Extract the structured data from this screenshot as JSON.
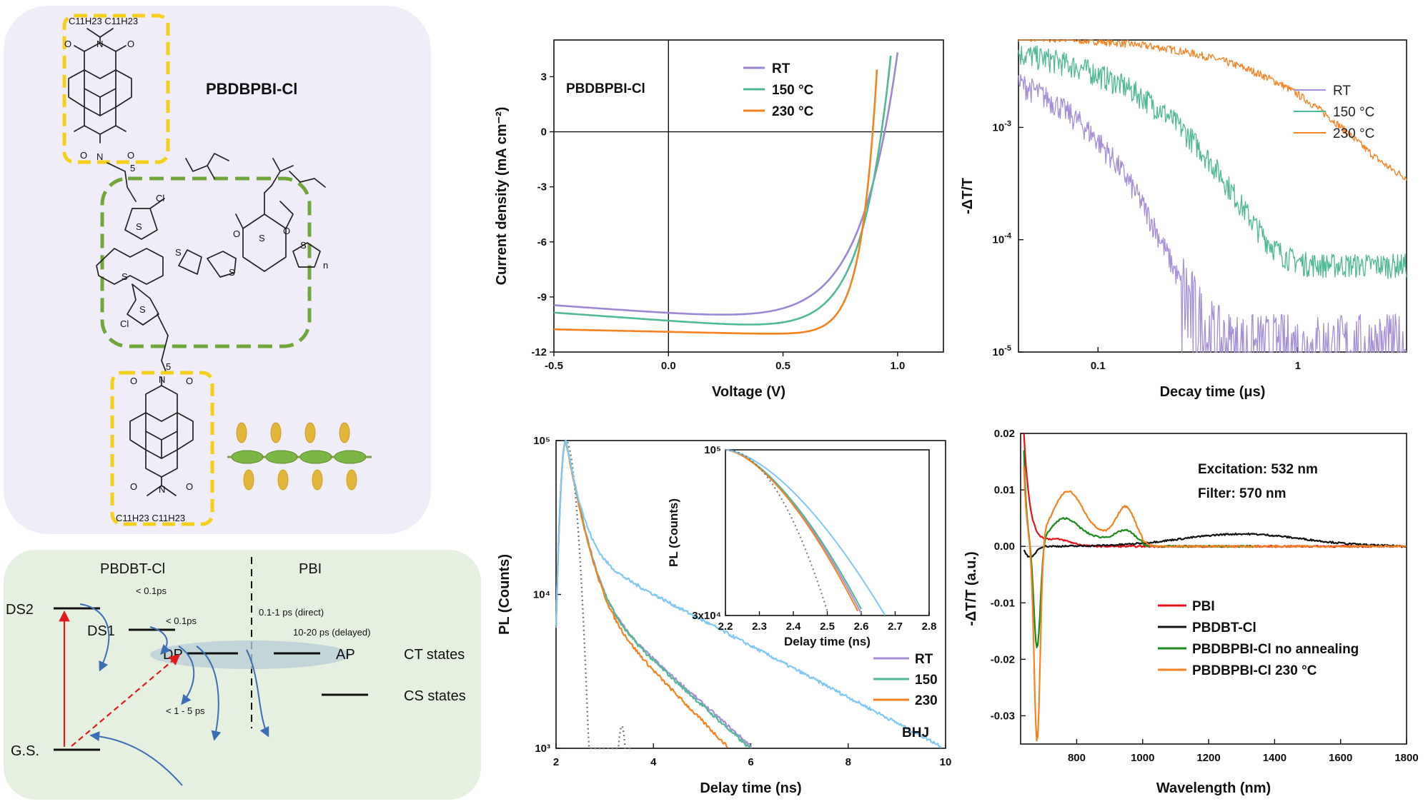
{
  "molecule": {
    "name": "PBDBPBI-Cl",
    "alkyl_top": "C11H23 C11H23",
    "alkyl_bottom": "C11H23 C11H23",
    "atoms": {
      "n": "N",
      "o": "O",
      "s": "S",
      "cl": "Cl",
      "sub5": "5",
      "subn": "n"
    }
  },
  "energy_diagram": {
    "left_label": "PBDBT-Cl",
    "right_label": "PBI",
    "states": {
      "ds2": "DS2",
      "ds1": "DS1",
      "dp": "DP",
      "ap": "AP",
      "gs": "G.S.",
      "ct": "CT states",
      "cs": "CS states"
    },
    "times": {
      "t1": "< 0.1ps",
      "t2": "< 0.1ps",
      "t3": "0.1-1 ps (direct)",
      "t4": "10-20 ps (delayed)",
      "t5": "< 1 - 5 ps"
    }
  },
  "chart_data": [
    {
      "id": "jv",
      "type": "line",
      "annotation": "PBDBPBI-Cl",
      "xlabel": "Voltage (V)",
      "ylabel": "Current density (mA cm⁻²)",
      "xlim": [
        -0.5,
        1.2
      ],
      "ylim": [
        -12,
        5
      ],
      "xticks": [
        "-0.5",
        "0.0",
        "0.5",
        "1.0"
      ],
      "yticks": [
        "3",
        "0",
        "-3",
        "-6",
        "-9",
        "-12"
      ],
      "series": [
        {
          "name": "RT",
          "color": "#9b86d3",
          "jsc": -9.9,
          "voc": 0.93,
          "n": 3.8
        },
        {
          "name": "150 °C",
          "color": "#4fb995",
          "jsc": -10.3,
          "voc": 0.92,
          "n": 2.9
        },
        {
          "name": "230 °C",
          "color": "#f5821f",
          "jsc": -10.9,
          "voc": 0.89,
          "n": 1.6
        }
      ]
    },
    {
      "id": "decay",
      "type": "line",
      "xlabel": "Decay time (μs)",
      "ylabel": "-ΔT/T",
      "scale": "log-log",
      "xlim": [
        0.04,
        3.5
      ],
      "ylim": [
        1e-05,
        0.006
      ],
      "xticks": [
        "0.1",
        "1"
      ],
      "yticks": [
        "10-3",
        "10-4",
        "10-5"
      ],
      "series": [
        {
          "name": "RT",
          "color": "#a68fd6",
          "a": 0.0025,
          "tau": 0.05
        },
        {
          "name": "150 °C",
          "color": "#4fb995",
          "a": 0.0045,
          "tau": 0.14
        },
        {
          "name": "230 °C",
          "color": "#f5821f",
          "a": 0.006,
          "tau": 0.75
        }
      ]
    },
    {
      "id": "pl",
      "type": "line",
      "xlabel": "Delay time (ns)",
      "ylabel": "PL (Counts)",
      "scale": "log-y",
      "xlim": [
        2,
        10
      ],
      "ylim": [
        1000,
        100000
      ],
      "xticks": [
        "2",
        "4",
        "6",
        "8",
        "10"
      ],
      "yticks": [
        "10⁵",
        "10⁴",
        "10³"
      ],
      "series": [
        {
          "name": "RT",
          "color": "#a68fd6"
        },
        {
          "name": "150",
          "color": "#4fb995"
        },
        {
          "name": "230",
          "color": "#f5821f"
        },
        {
          "name": "BHJ",
          "color": "#7ec8f2"
        }
      ],
      "inset": {
        "xlabel": "Delay time (ns)",
        "ylabel": "PL (Counts)",
        "xlim": [
          2.2,
          2.8
        ],
        "ylim": [
          30000,
          100000
        ],
        "xticks": [
          "2.2",
          "2.3",
          "2.4",
          "2.5",
          "2.6",
          "2.7",
          "2.8"
        ],
        "yticks": [
          "10⁵",
          "3x10⁴"
        ]
      }
    },
    {
      "id": "spectra",
      "type": "line",
      "xlabel": "Wavelength (nm)",
      "ylabel": "-ΔT/T (a.u.)",
      "xlim": [
        630,
        1800
      ],
      "ylim": [
        -0.035,
        0.02
      ],
      "xticks": [
        "800",
        "1000",
        "1200",
        "1400",
        "1600",
        "1800"
      ],
      "yticks": [
        "0.02",
        "0.01",
        "0.00",
        "-0.01",
        "-0.02",
        "-0.03"
      ],
      "notes": [
        "Excitation: 532 nm",
        "Filter: 570 nm"
      ],
      "series": [
        {
          "name": "PBI",
          "color": "#e8111b"
        },
        {
          "name": "PBDBT-Cl",
          "color": "#111111"
        },
        {
          "name": "PBDBPBI-Cl no annealing",
          "color": "#1a8a1a"
        },
        {
          "name": "PBDBPBI-Cl 230 °C",
          "color": "#f5821f"
        }
      ]
    }
  ]
}
